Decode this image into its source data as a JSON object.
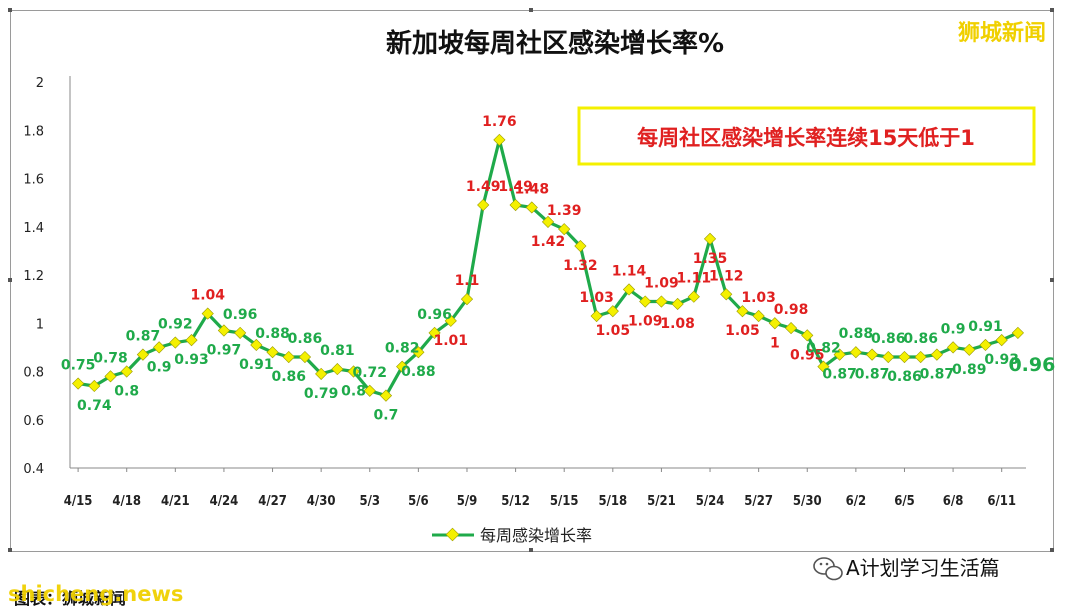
{
  "header": {
    "brand": "狮城新闻"
  },
  "chart_data": {
    "type": "line",
    "title": "新加坡每周社区感染增长率%",
    "xlabel": "",
    "ylabel": "",
    "ylim": [
      0.4,
      2
    ],
    "yticks": [
      "0.4",
      "0.6",
      "0.8",
      "1",
      "1.2",
      "1.4",
      "1.6",
      "1.8",
      "2"
    ],
    "xticks": [
      "4/15",
      "4/18",
      "4/21",
      "4/24",
      "4/27",
      "4/30",
      "5/3",
      "5/6",
      "5/9",
      "5/12",
      "5/15",
      "5/18",
      "5/21",
      "5/24",
      "5/27",
      "5/30",
      "6/2",
      "6/5",
      "6/8",
      "6/11"
    ],
    "grid": false,
    "legend_placement": "bottom",
    "annotation": "每周社区感染增长率连续15天低于1",
    "series": [
      {
        "name": "每周感染增长率",
        "color": "#1faa4a",
        "marker_color": "#f4f000",
        "values": [
          0.75,
          0.74,
          0.78,
          0.8,
          0.87,
          0.9,
          0.92,
          0.93,
          1.04,
          0.97,
          0.96,
          0.91,
          0.88,
          0.86,
          0.86,
          0.79,
          0.81,
          0.8,
          0.72,
          0.7,
          0.82,
          0.88,
          0.96,
          1.01,
          1.1,
          1.49,
          1.76,
          1.49,
          1.48,
          1.42,
          1.39,
          1.32,
          1.03,
          1.05,
          1.14,
          1.09,
          1.09,
          1.08,
          1.11,
          1.35,
          1.12,
          1.05,
          1.03,
          1.0,
          0.98,
          0.95,
          0.82,
          0.87,
          0.88,
          0.87,
          0.86,
          0.86,
          0.86,
          0.87,
          0.9,
          0.89,
          0.91,
          0.93,
          0.96
        ],
        "value_labels": [
          "0.75",
          "0.74",
          "0.78",
          "0.8",
          "0.87",
          "0.9",
          "0.92",
          "0.93",
          "1.04",
          "0.97",
          "0.96",
          "0.91",
          "0.88",
          "0.86",
          "0.86",
          "0.79",
          "0.81",
          "0.8",
          "0.72",
          "0.7",
          "0.82",
          "0.88",
          "0.96",
          "1.01",
          "1.1",
          "1.49",
          "1.76",
          "1.49",
          "1.48",
          "1.42",
          "1.39",
          "1.32",
          "1.03",
          "1.05",
          "1.14",
          "1.09",
          "1.09",
          "1.08",
          "1.11",
          "1.35",
          "1.12",
          "1.05",
          "1.03",
          "1",
          "0.98",
          "0.95",
          "0.82",
          "0.87",
          "0.88",
          "0.87",
          "0.86",
          "0.86",
          "0.86",
          "0.87",
          "0.9",
          "0.89",
          "0.91",
          "0.93",
          "0.96"
        ]
      }
    ]
  },
  "footer": {
    "watermark": "shicheng.news",
    "source": "图表：狮城新闻",
    "wechat_account": "A计划学习生活篇",
    "wechat_icon": "wechat-icon"
  }
}
